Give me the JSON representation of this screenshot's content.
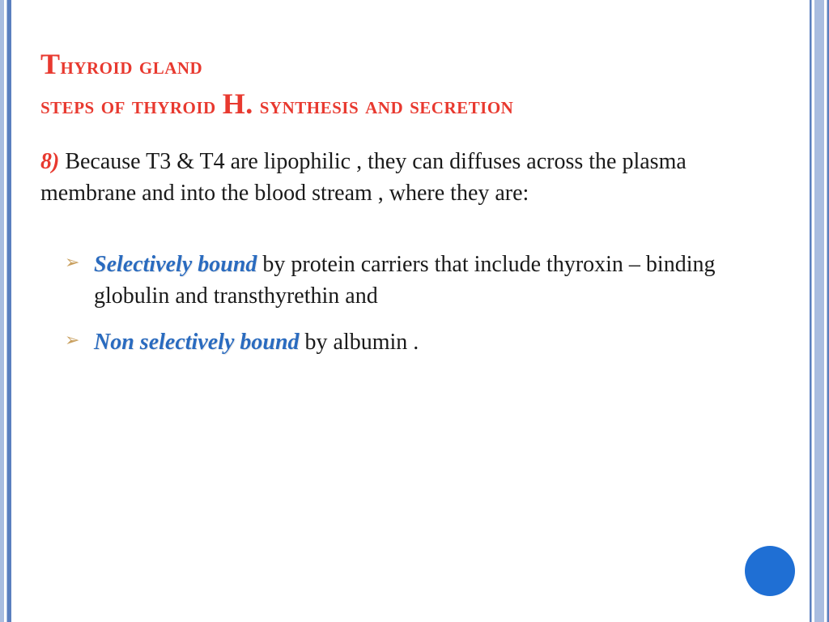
{
  "colors": {
    "title_color": "#e8392f",
    "emphasis_color": "#2a6bbf",
    "body_color": "#1a1a1a",
    "bullet_marker": "#c9a05f",
    "border_light": "#a9bde0",
    "border_dark": "#5a7fbf",
    "circle": "#1f6fd4",
    "background": "#ffffff"
  },
  "typography": {
    "family": "Georgia, serif",
    "title_fontsize": 30,
    "body_fontsize": 28,
    "title_variant": "small-caps"
  },
  "title": {
    "line1_prefix_big": "T",
    "line1_rest": "hyroid gland",
    "line2_before": "steps of thyroid ",
    "line2_big": "H.",
    "line2_after": " synthesis and secretion"
  },
  "step": {
    "number": "8)",
    "text": " Because T3 & T4 are lipophilic , they can diffuses across the plasma membrane and into the blood stream , where they are:"
  },
  "bullets": [
    {
      "emphasis": "Selectively bound",
      "rest": " by protein carriers that include thyroxin – binding globulin and transthyrethin  and"
    },
    {
      "emphasis": "Non selectively bound",
      "rest": " by albumin ."
    }
  ]
}
